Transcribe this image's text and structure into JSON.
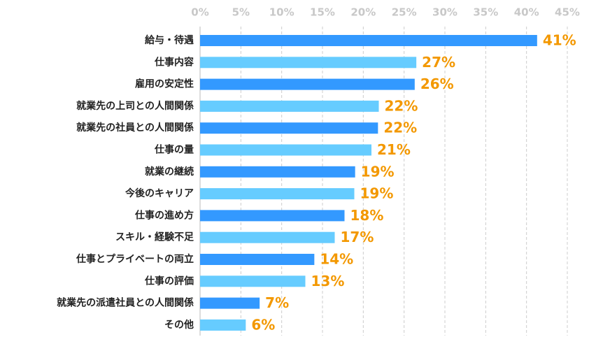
{
  "chart_data": {
    "type": "bar",
    "orientation": "horizontal",
    "categories": [
      "給与・待遇",
      "仕事内容",
      "雇用の安定性",
      "就業先の上司との人間関係",
      "就業先の社員との人間関係",
      "仕事の量",
      "就業の継続",
      "今後のキャリア",
      "仕事の進め方",
      "スキル・経験不足",
      "仕事とプライベートの両立",
      "仕事の評価",
      "就業先の派遣社員との人間関係",
      "その他"
    ],
    "values": [
      41.3,
      26.5,
      26.3,
      21.9,
      21.8,
      21.0,
      19.0,
      18.9,
      17.7,
      16.5,
      14.0,
      12.9,
      7.3,
      5.6
    ],
    "value_labels": [
      "41%",
      "27%",
      "26%",
      "22%",
      "22%",
      "21%",
      "19%",
      "19%",
      "18%",
      "17%",
      "14%",
      "13%",
      "7%",
      "6%"
    ],
    "colors": [
      "#3399ff",
      "#66ccff",
      "#3399ff",
      "#66ccff",
      "#3399ff",
      "#66ccff",
      "#3399ff",
      "#66ccff",
      "#3399ff",
      "#66ccff",
      "#3399ff",
      "#66ccff",
      "#3399ff",
      "#66ccff"
    ],
    "label_color": "#f39800",
    "xlim": [
      0,
      45
    ],
    "xticks": [
      {
        "value": 0,
        "label": "0%"
      },
      {
        "value": 5,
        "label": "5%"
      },
      {
        "value": 10,
        "label": "10%"
      },
      {
        "value": 15,
        "label": "15%"
      },
      {
        "value": 20,
        "label": "20%"
      },
      {
        "value": 25,
        "label": "25%"
      },
      {
        "value": 30,
        "label": "30%"
      },
      {
        "value": 35,
        "label": "35%"
      },
      {
        "value": 40,
        "label": "40%"
      },
      {
        "value": 45,
        "label": "45%"
      }
    ],
    "grid": true
  }
}
